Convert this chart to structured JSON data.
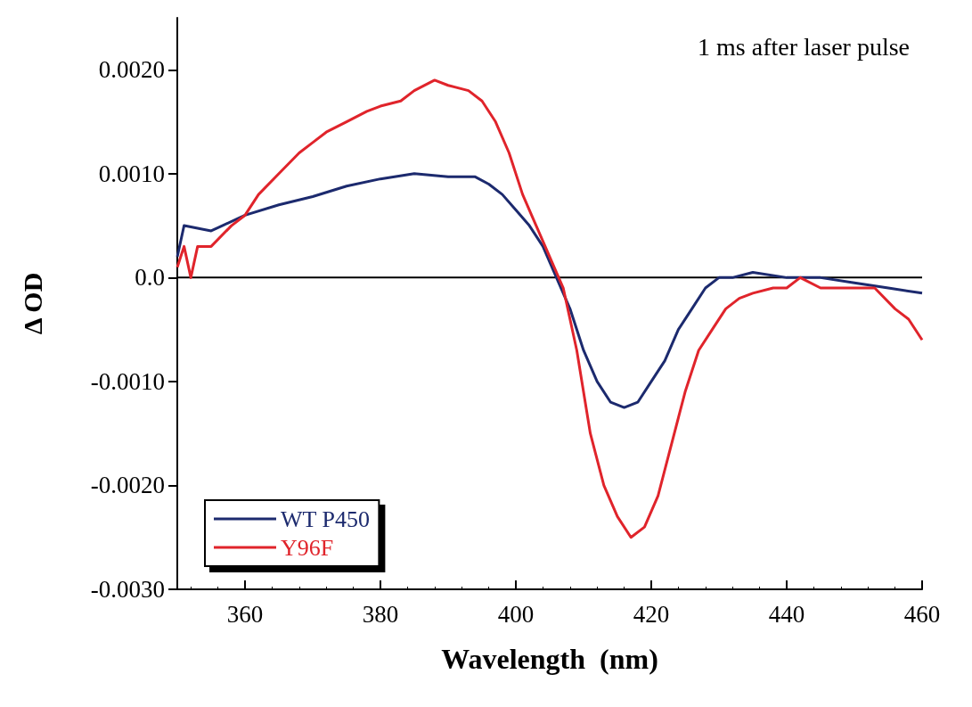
{
  "chart_data": {
    "type": "line",
    "xlabel": "Wavelength  (nm)",
    "ylabel": "Δ OD",
    "annotations": [
      "1 ms after laser pulse"
    ],
    "xlim": [
      350,
      460
    ],
    "xticks": [
      360,
      380,
      400,
      420,
      440,
      460
    ],
    "ylim": [
      -0.003,
      0.0025
    ],
    "yticks": [
      {
        "value": -0.003,
        "label": "-0.0030"
      },
      {
        "value": -0.002,
        "label": "-0.0020"
      },
      {
        "value": -0.001,
        "label": "-0.0010"
      },
      {
        "value": 0,
        "label": "0.0"
      },
      {
        "value": 0.001,
        "label": "0.0010"
      },
      {
        "value": 0.002,
        "label": "0.0020"
      }
    ],
    "legend": "bottom left",
    "grid": false,
    "marker": "none",
    "line_style": "solid",
    "ref_lines": [
      {
        "axis": "y",
        "value": 0,
        "color": "#000000"
      }
    ],
    "series": [
      {
        "name": "WT P450",
        "color": "#1c2a6e",
        "x": [
          350,
          351,
          355,
          360,
          365,
          370,
          375,
          380,
          385,
          390,
          394,
          396,
          398,
          400,
          402,
          404,
          406,
          408,
          410,
          412,
          414,
          416,
          418,
          420,
          422,
          424,
          426,
          428,
          430,
          432,
          435,
          440,
          445,
          450,
          455,
          460
        ],
        "values": [
          0.0002,
          0.0005,
          0.00045,
          0.0006,
          0.0007,
          0.00078,
          0.00088,
          0.00095,
          0.001,
          0.00097,
          0.00097,
          0.0009,
          0.0008,
          0.00065,
          0.0005,
          0.0003,
          0.0,
          -0.0003,
          -0.0007,
          -0.001,
          -0.0012,
          -0.00125,
          -0.0012,
          -0.001,
          -0.0008,
          -0.0005,
          -0.0003,
          -0.0001,
          0.0,
          0.0,
          5e-05,
          0.0,
          0.0,
          -5e-05,
          -0.0001,
          -0.00015
        ]
      },
      {
        "name": "Y96F",
        "color": "#e0242b",
        "x": [
          350,
          351,
          352,
          353,
          355,
          358,
          360,
          362,
          365,
          368,
          370,
          372,
          375,
          378,
          380,
          383,
          385,
          388,
          390,
          393,
          395,
          397,
          399,
          401,
          403,
          405,
          407,
          409,
          411,
          413,
          415,
          417,
          419,
          421,
          423,
          425,
          427,
          429,
          431,
          433,
          435,
          438,
          440,
          442,
          445,
          448,
          450,
          453,
          456,
          458,
          460
        ],
        "values": [
          0.0001,
          0.0003,
          0.0,
          0.0003,
          0.0003,
          0.0005,
          0.0006,
          0.0008,
          0.001,
          0.0012,
          0.0013,
          0.0014,
          0.0015,
          0.0016,
          0.00165,
          0.0017,
          0.0018,
          0.0019,
          0.00185,
          0.0018,
          0.0017,
          0.0015,
          0.0012,
          0.0008,
          0.0005,
          0.0002,
          -0.0001,
          -0.0007,
          -0.0015,
          -0.002,
          -0.0023,
          -0.0025,
          -0.0024,
          -0.0021,
          -0.0016,
          -0.0011,
          -0.0007,
          -0.0005,
          -0.0003,
          -0.0002,
          -0.00015,
          -0.0001,
          -0.0001,
          0.0,
          -0.0001,
          -0.0001,
          -0.0001,
          -0.0001,
          -0.0003,
          -0.0004,
          -0.0006
        ]
      }
    ]
  }
}
